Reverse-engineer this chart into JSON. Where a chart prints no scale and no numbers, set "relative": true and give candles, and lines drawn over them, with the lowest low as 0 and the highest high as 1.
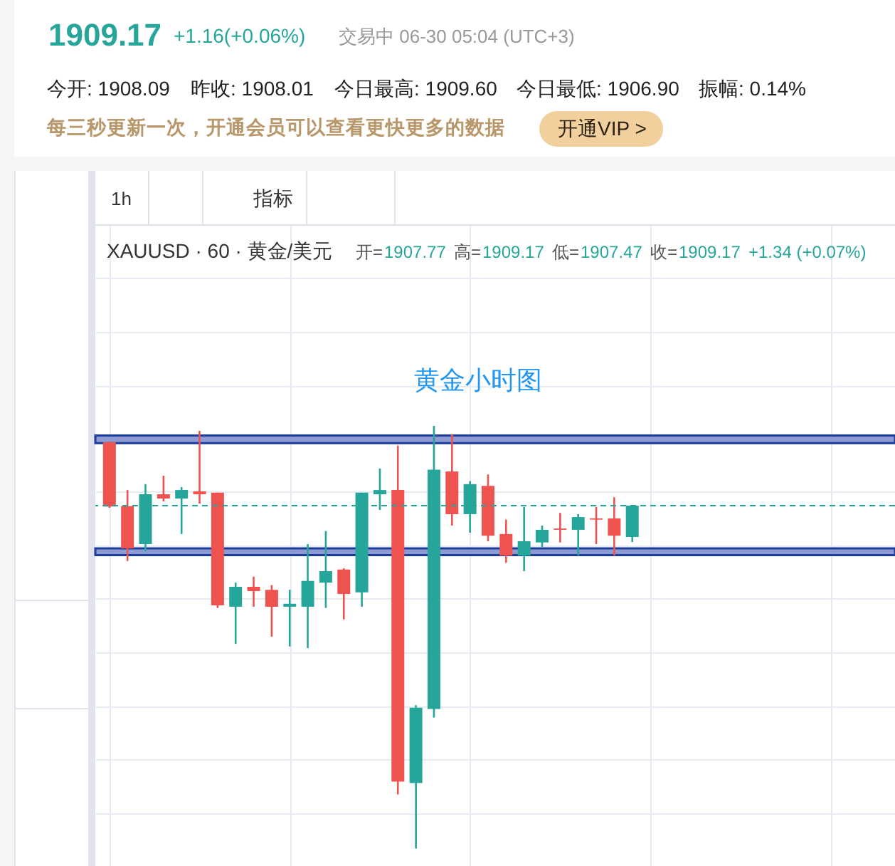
{
  "chart_data": {
    "type": "candlestick",
    "title": "黄金小时图",
    "relative": true,
    "categories": [
      null,
      null,
      null,
      null,
      null,
      null,
      null,
      null,
      null,
      null,
      null,
      null,
      null,
      null,
      null,
      null,
      null,
      null,
      null,
      null,
      null,
      null,
      null,
      null,
      null,
      null,
      null,
      null,
      null,
      null
    ],
    "ohlc": [
      [
        0.961,
        0.963,
        0.806,
        0.809
      ],
      [
        0.81,
        0.848,
        0.68,
        0.71
      ],
      [
        0.72,
        0.862,
        0.703,
        0.838
      ],
      [
        0.838,
        0.882,
        0.821,
        0.828
      ],
      [
        0.828,
        0.855,
        0.744,
        0.848
      ],
      [
        0.845,
        0.988,
        0.816,
        0.838
      ],
      [
        0.842,
        0.842,
        0.569,
        0.575
      ],
      [
        0.572,
        0.629,
        0.484,
        0.619
      ],
      [
        0.619,
        0.643,
        0.572,
        0.609
      ],
      [
        0.612,
        0.623,
        0.501,
        0.572
      ],
      [
        0.572,
        0.612,
        0.478,
        0.579
      ],
      [
        0.572,
        0.72,
        0.474,
        0.633
      ],
      [
        0.629,
        0.751,
        0.569,
        0.656
      ],
      [
        0.66,
        0.663,
        0.542,
        0.602
      ],
      [
        0.606,
        0.842,
        0.572,
        0.842
      ],
      [
        0.838,
        0.899,
        0.801,
        0.848
      ],
      [
        0.848,
        0.953,
        0.128,
        0.158
      ],
      [
        0.155,
        0.339,
        0,
        0.333
      ],
      [
        0.33,
        1,
        0.31,
        0.896
      ],
      [
        0.892,
        0.98,
        0.764,
        0.791
      ],
      [
        0.791,
        0.869,
        0.747,
        0.862
      ],
      [
        0.858,
        0.885,
        0.727,
        0.74
      ],
      [
        0.744,
        0.778,
        0.676,
        0.693
      ],
      [
        0.693,
        0.808,
        0.656,
        0.727
      ],
      [
        0.724,
        0.764,
        0.713,
        0.754
      ],
      [
        0.757,
        0.794,
        0.724,
        0.754
      ],
      [
        0.754,
        0.791,
        0.693,
        0.784
      ],
      [
        0.781,
        0.808,
        0.72,
        0.778
      ],
      [
        0.781,
        0.831,
        0.693,
        0.74
      ],
      [
        0.737,
        0.811,
        0.725,
        0.811
      ]
    ],
    "colors": [
      "#ef5350",
      "#ef5350",
      "#26a69a",
      "#ef5350",
      "#26a69a",
      "#ef5350",
      "#ef5350",
      "#26a69a",
      "#ef5350",
      "#ef5350",
      "#26a69a",
      "#26a69a",
      "#26a69a",
      "#ef5350",
      "#26a69a",
      "#26a69a",
      "#ef5350",
      "#26a69a",
      "#26a69a",
      "#ef5350",
      "#26a69a",
      "#ef5350",
      "#ef5350",
      "#26a69a",
      "#26a69a",
      "#ef5350",
      "#26a69a",
      "#ef5350",
      "#ef5350",
      "#26a69a"
    ],
    "grid": true,
    "ref_lines": [
      {
        "axis": "y",
        "value": 0.811,
        "color": "#26a69a",
        "line_style": "dashed"
      }
    ],
    "bands": [
      {
        "axis": "y",
        "from": 0.959,
        "to": 0.977,
        "color": "#8e9bd3"
      },
      {
        "axis": "y",
        "from": 0.694,
        "to": 0.71,
        "color": "#8e9bd3"
      }
    ],
    "annotations": [
      "1909.17",
      "+1.16(+0.06%)",
      "交易中 06-30 05:04 (UTC+3)",
      "今开: 1908.09",
      "昨收: 1908.01",
      "今日最高: 1909.60",
      "今日最低: 1906.90",
      "振幅: 0.14%",
      "每三秒更新一次，开通会员可以查看更快更多的数据",
      "开通VIP >",
      "1h",
      "指标",
      "XAUUSD · 60 · 黄金/美元",
      "开=",
      "1907.77",
      "高=",
      "1909.17",
      "低=",
      "1907.47",
      "收=",
      "1909.17",
      "+1.34 (+0.07%)"
    ]
  }
}
